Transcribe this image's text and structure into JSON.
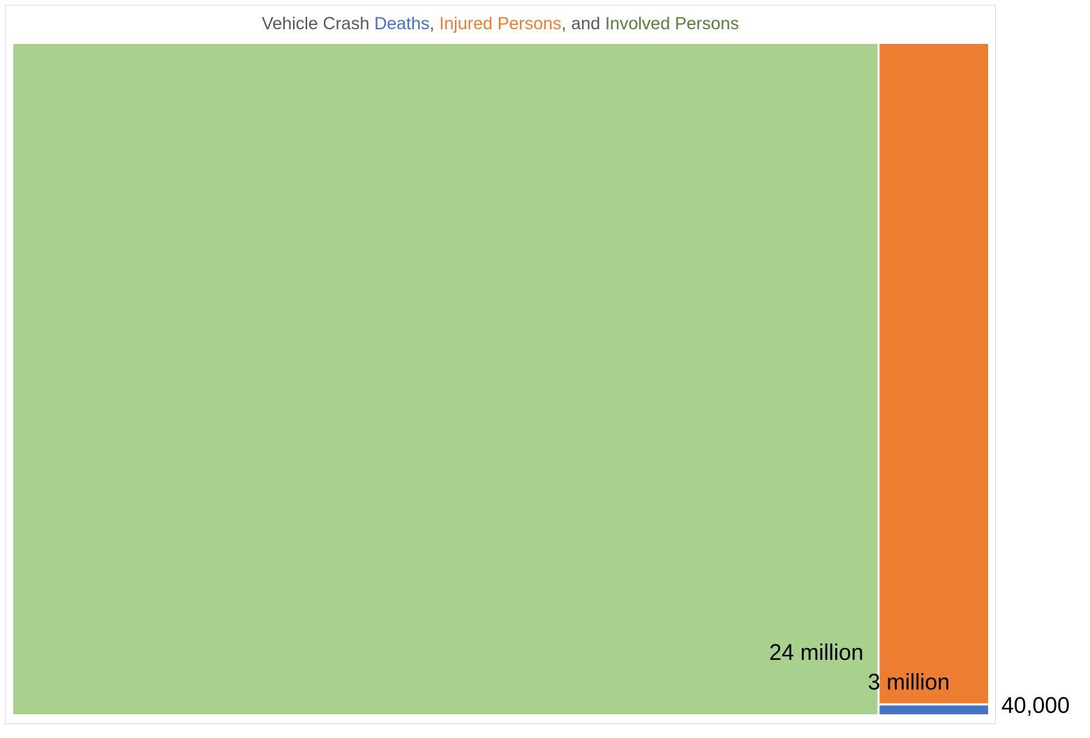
{
  "chart_data": {
    "type": "treemap",
    "title": {
      "parts": [
        {
          "text": "Vehicle Crash ",
          "color": "#595959"
        },
        {
          "text": "Deaths",
          "color": "#4472c4"
        },
        {
          "text": ", ",
          "color": "#595959"
        },
        {
          "text": "Injured Persons",
          "color": "#ed7d31"
        },
        {
          "text": ", and ",
          "color": "#595959"
        },
        {
          "text": "Involved Persons",
          "color": "#548235"
        }
      ]
    },
    "categories": [
      "Involved Persons",
      "Injured Persons",
      "Deaths"
    ],
    "values": [
      24000000,
      3000000,
      40000
    ],
    "data_labels": [
      "24 million",
      "3 million",
      "40,000"
    ],
    "colors": [
      "#a9d18e",
      "#ed7d31",
      "#4472c4"
    ]
  }
}
